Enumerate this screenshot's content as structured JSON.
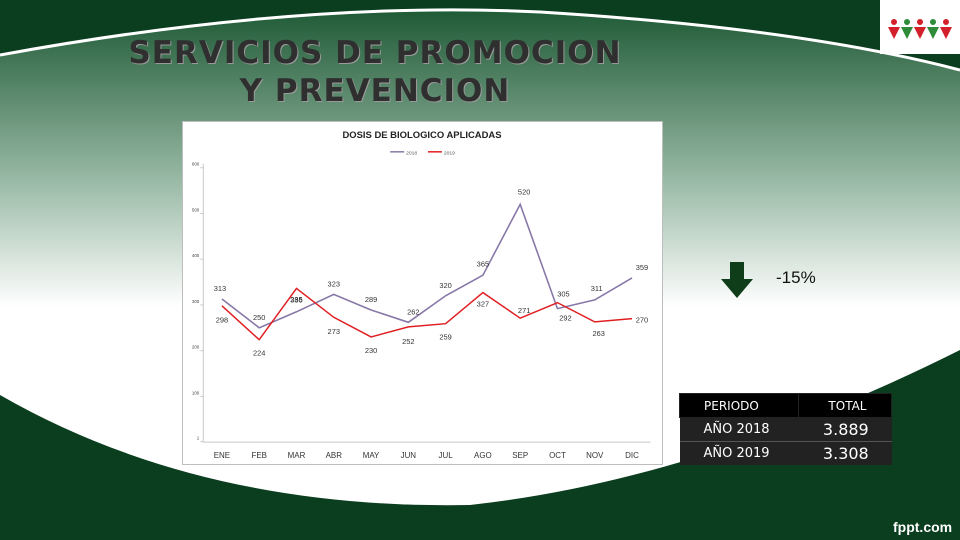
{
  "slide": {
    "title_line1": "SERVICIOS DE PROMOCION",
    "title_line2": "Y PREVENCION",
    "change_percent": "-15%",
    "footer_brand": "fppt.com"
  },
  "summary_table": {
    "headers": [
      "PERIODO",
      "TOTAL"
    ],
    "rows": [
      {
        "periodo": "AÑO 2018",
        "total": "3.889"
      },
      {
        "periodo": "AÑO 2019",
        "total": "3.308"
      }
    ]
  },
  "colors": {
    "dark_green": "#0b3d1f",
    "series_2018": "#8878a8",
    "series_2019": "#e01e22",
    "arrow": "#0f3d1a"
  },
  "chart_data": {
    "type": "line",
    "title": "DOSIS DE BIOLOGICO APLICADAS",
    "categories": [
      "ENE",
      "FEB",
      "MAR",
      "ABR",
      "MAY",
      "JUN",
      "JUL",
      "AGO",
      "SEP",
      "OCT",
      "NOV",
      "DIC"
    ],
    "series": [
      {
        "name": "2018",
        "values": [
          313,
          250,
          285,
          323,
          289,
          262,
          320,
          365,
          520,
          292,
          311,
          359
        ]
      },
      {
        "name": "2019",
        "values": [
          298,
          224,
          336,
          273,
          230,
          252,
          259,
          327,
          271,
          305,
          263,
          270
        ]
      }
    ],
    "y_ticks": [
      1,
      100,
      200,
      300,
      400,
      500,
      600
    ],
    "ylim": [
      1,
      600
    ],
    "legend_position": "top-center",
    "grid": false
  }
}
